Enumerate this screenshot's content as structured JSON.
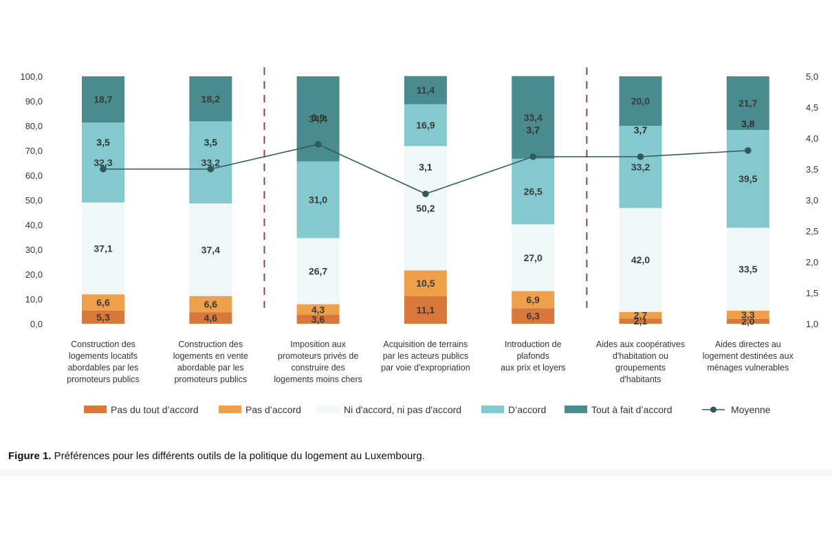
{
  "chart_data": {
    "type": "bar",
    "stacked": true,
    "categories": [
      [
        "Construction des",
        "logements locatifs",
        "abordables par les",
        "promoteurs publics"
      ],
      [
        "Construction des",
        "logements en vente",
        "abordable par les",
        "promoteurs publics"
      ],
      [
        "Imposition aux",
        "promoteurs privés de",
        "construire des",
        "logements moins chers"
      ],
      [
        "Acquisition de terrains",
        "par les acteurs publics",
        "par voie d'expropriation"
      ],
      [
        "Introduction de",
        "plafonds",
        "aux prix et loyers"
      ],
      [
        "Aides aux coopératives",
        "d'habitation ou",
        "groupements",
        "d'habitants"
      ],
      [
        "Aides directes au",
        "logement destinées aux",
        "ménages vulnerables"
      ]
    ],
    "series": [
      {
        "name": "Pas du tout d’accord",
        "color": "#d9783a",
        "values": [
          5.3,
          4.6,
          3.6,
          11.1,
          6.3,
          2.1,
          2.0
        ],
        "labels": [
          "5,3",
          "4,6",
          "3,6",
          "11,1",
          "6,3",
          "2,1",
          "2,0"
        ]
      },
      {
        "name": "Pas d’accord",
        "color": "#eea04a",
        "values": [
          6.6,
          6.6,
          4.3,
          10.5,
          6.9,
          2.7,
          3.3
        ],
        "labels": [
          "6,6",
          "6,6",
          "4,3",
          "10,5",
          "6,9",
          "2,7",
          "3,3"
        ]
      },
      {
        "name": "Ni d'accord, ni pas d'accord",
        "color": "#f0f7f9",
        "values": [
          37.1,
          37.4,
          26.7,
          50.2,
          27.0,
          42.0,
          33.5
        ],
        "labels": [
          "37,1",
          "37,4",
          "26,7",
          "50,2",
          "27,0",
          "42,0",
          "33,5"
        ]
      },
      {
        "name": "D’accord",
        "color": "#83c9cd",
        "values": [
          32.3,
          33.2,
          31.0,
          16.9,
          26.5,
          33.2,
          39.5
        ],
        "labels": [
          "32,3",
          "33,2",
          "31,0",
          "16,9",
          "26,5",
          "33,2",
          "39,5"
        ]
      },
      {
        "name": "Tout à fait d’accord",
        "color": "#4a8b8e",
        "values": [
          18.7,
          18.2,
          34.4,
          11.4,
          33.4,
          20.0,
          21.7
        ],
        "labels": [
          "18,7",
          "18,2",
          "34,4",
          "11,4",
          "33,4",
          "20,0",
          "21,7"
        ]
      }
    ],
    "line_series": {
      "name": "Moyenne",
      "color": "#2f5a5c",
      "axis": "right",
      "values": [
        3.5,
        3.5,
        3.9,
        3.1,
        3.7,
        3.7,
        3.8
      ],
      "labels": [
        "3,5",
        "3,5",
        "3,9",
        "3,1",
        "3,7",
        "3,7",
        "3,8"
      ]
    },
    "y_left": {
      "lim": [
        0,
        100
      ],
      "ticks": [
        "0,0",
        "10,0",
        "20,0",
        "30,0",
        "40,0",
        "50,0",
        "60,0",
        "70,0",
        "80,0",
        "90,0",
        "100,0"
      ]
    },
    "y_right": {
      "lim": [
        1.0,
        5.0
      ],
      "ticks": [
        "1,0",
        "1,5",
        "2,0",
        "2,5",
        "3,0",
        "3,5",
        "4,0",
        "4,5",
        "5,0"
      ]
    },
    "group_separators_after_category": [
      1,
      4
    ],
    "legend_position": "bottom",
    "grid": false
  },
  "caption": {
    "label": "Figure 1.",
    "text": " Préférences pour les différents outils de la politique du logement au Luxembourg."
  }
}
